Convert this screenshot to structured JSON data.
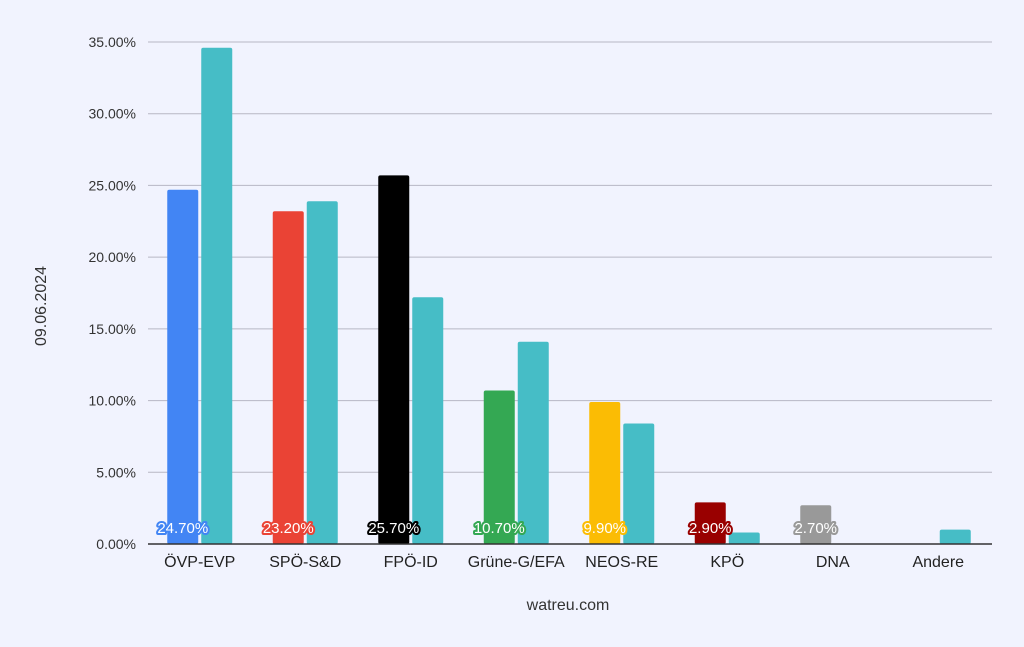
{
  "chart_data": {
    "type": "bar",
    "categories": [
      "ÖVP-EVP",
      "SPÖ-S&D",
      "FPÖ-ID",
      "Grüne-G/EFA",
      "NEOS-RE",
      "KPÖ",
      "DNA",
      "Andere"
    ],
    "series": [
      {
        "name": "09.06.2024",
        "values": [
          24.7,
          23.2,
          25.7,
          10.7,
          9.9,
          2.9,
          2.7,
          null
        ],
        "colors": [
          "#4285f4",
          "#ea4335",
          "#000000",
          "#34a853",
          "#fbbc04",
          "#990000",
          "#999999",
          "#cccccc"
        ],
        "labels": [
          "24.70%",
          "23.20%",
          "25.70%",
          "10.70%",
          "9.90%",
          "2.90%",
          "2.70%",
          ""
        ]
      },
      {
        "name": "",
        "values": [
          34.6,
          23.9,
          17.2,
          14.1,
          8.4,
          0.8,
          null,
          1.0
        ],
        "color": "#46bdc6"
      }
    ],
    "yticks": [
      "0.00%",
      "5.00%",
      "10.00%",
      "15.00%",
      "20.00%",
      "25.00%",
      "30.00%",
      "35.00%"
    ],
    "ylim": [
      0,
      35
    ],
    "ylabel": "09.06.2024",
    "xlabel": "watreu.com",
    "grid": true,
    "legend": "none"
  }
}
